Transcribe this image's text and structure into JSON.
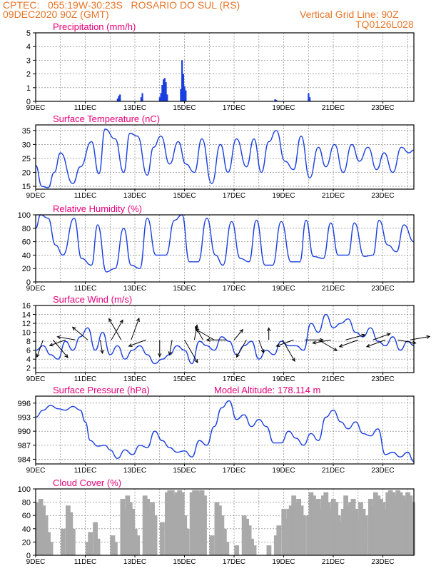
{
  "header": {
    "line1": "CPTEC:   055:19W-30:23S   ROSARIO DO SUL (RS)",
    "line2_left": "09DEC2020 90Z (GMT)",
    "line2_right": "Vertical Grid Line: 90Z",
    "line3_right": "TQ0126L028",
    "color": "#e8762a"
  },
  "colors": {
    "title": "#e8007a",
    "series": "#1a3fe0",
    "cloud": "#a9a9a9",
    "wind": "#000000"
  },
  "x_ticks": [
    "9DEC",
    "11DEC",
    "13DEC",
    "15DEC",
    "17DEC",
    "19DEC",
    "21DEC",
    "23DEC"
  ],
  "chart_data": [
    {
      "type": "bar",
      "title": "Precipitation (mm/h)",
      "xlim": [
        9,
        24.25
      ],
      "ylim": [
        0,
        5
      ],
      "yticks": [
        0,
        1,
        2,
        3,
        4,
        5
      ],
      "series": [
        {
          "x": [
            12.3,
            12.35,
            12.4,
            13.25,
            13.3,
            14.0,
            14.05,
            14.1,
            14.15,
            14.2,
            14.25,
            14.3,
            14.85,
            14.9,
            14.95,
            15.0,
            15.05,
            18.65,
            18.7,
            20.0,
            20.05
          ],
          "values": [
            0.2,
            0.4,
            0.5,
            0.3,
            0.6,
            0.3,
            0.6,
            1.2,
            1.6,
            1.7,
            1.4,
            0.5,
            0.9,
            3.0,
            2.0,
            1.1,
            0.8,
            0.15,
            0.1,
            0.6,
            0.3
          ]
        }
      ]
    },
    {
      "type": "line",
      "title": "Surface Temperature (nC)",
      "xlim": [
        9,
        24.25
      ],
      "ylim": [
        14,
        37
      ],
      "yticks": [
        15,
        20,
        25,
        30,
        35
      ],
      "series": [
        {
          "x": [
            9.0,
            9.25,
            9.5,
            9.75,
            10.0,
            10.5,
            10.8,
            11.25,
            11.55,
            11.8,
            12.2,
            12.55,
            12.8,
            13.1,
            13.5,
            13.75,
            14.05,
            14.4,
            14.75,
            15.05,
            15.4,
            15.7,
            16.1,
            16.45,
            16.75,
            17.1,
            17.5,
            17.8,
            18.1,
            18.4,
            18.7,
            19.05,
            19.4,
            19.7,
            20.05,
            20.4,
            20.7,
            21.05,
            21.4,
            21.75,
            22.05,
            22.4,
            22.75,
            23.05,
            23.4,
            23.75,
            24.05,
            24.25
          ],
          "values": [
            22.5,
            15,
            14.5,
            20,
            27,
            16,
            22,
            31,
            19.5,
            35.5,
            32,
            20,
            34,
            33,
            19,
            29,
            33,
            23,
            31,
            23,
            20,
            32,
            16,
            30,
            20,
            32,
            22,
            32,
            20,
            31,
            35,
            24,
            21,
            33,
            18,
            29,
            22,
            30,
            20,
            30,
            24,
            29,
            21,
            27,
            20,
            29,
            27,
            28
          ]
        }
      ]
    },
    {
      "type": "line",
      "title": "Relative Humidity (%)",
      "xlim": [
        9,
        24.25
      ],
      "ylim": [
        0,
        100
      ],
      "yticks": [
        0,
        20,
        40,
        60,
        80,
        100
      ],
      "series": [
        {
          "x": [
            9.0,
            9.2,
            9.5,
            9.8,
            10.1,
            10.55,
            10.85,
            11.25,
            11.5,
            11.85,
            12.2,
            12.55,
            12.85,
            13.2,
            13.5,
            13.85,
            14.25,
            14.6,
            14.9,
            15.2,
            15.55,
            15.9,
            16.25,
            16.55,
            16.9,
            17.25,
            17.6,
            17.9,
            18.25,
            18.55,
            18.9,
            19.3,
            19.65,
            19.9,
            20.2,
            20.6,
            20.9,
            21.2,
            21.6,
            21.85,
            22.25,
            22.6,
            22.85,
            23.2,
            23.55,
            23.85,
            24.25
          ],
          "values": [
            80,
            100,
            95,
            55,
            40,
            95,
            35,
            25,
            85,
            15,
            20,
            80,
            25,
            20,
            95,
            40,
            40,
            92,
            100,
            30,
            30,
            95,
            40,
            25,
            90,
            35,
            30,
            92,
            25,
            25,
            90,
            30,
            30,
            92,
            38,
            35,
            88,
            40,
            40,
            88,
            38,
            40,
            92,
            55,
            45,
            85,
            60
          ]
        }
      ]
    },
    {
      "type": "line",
      "title": "Surface Wind (m/s)",
      "xlim": [
        9,
        24.25
      ],
      "ylim": [
        1,
        16
      ],
      "yticks": [
        2,
        4,
        6,
        8,
        10,
        12,
        14,
        16
      ],
      "series": [
        {
          "x": [
            9.0,
            9.3,
            9.6,
            9.9,
            10.2,
            10.5,
            10.8,
            11.1,
            11.4,
            11.7,
            12.0,
            12.3,
            12.6,
            12.9,
            13.2,
            13.5,
            13.8,
            14.1,
            14.4,
            14.7,
            15.0,
            15.3,
            15.6,
            15.9,
            16.2,
            16.5,
            16.8,
            17.1,
            17.4,
            17.7,
            18.0,
            18.3,
            18.6,
            18.9,
            19.2,
            19.5,
            19.8,
            20.1,
            20.4,
            20.7,
            21.0,
            21.3,
            21.6,
            21.9,
            22.2,
            22.5,
            22.8,
            23.1,
            23.4,
            23.7,
            24.0,
            24.25
          ],
          "values": [
            6,
            7,
            5,
            4,
            8,
            6,
            9,
            11,
            6,
            10,
            5,
            7,
            4,
            6,
            7,
            5,
            3,
            4,
            5,
            7,
            6,
            3,
            8,
            7,
            6,
            9,
            8,
            5,
            7,
            8,
            4,
            6,
            5,
            8,
            7,
            7,
            6,
            12,
            10,
            14,
            11,
            12,
            13,
            10,
            9,
            11,
            8,
            7,
            9,
            6,
            8,
            7
          ]
        }
      ],
      "barbs": [
        {
          "x": 9.3,
          "speed": 8,
          "dir": 200
        },
        {
          "x": 9.7,
          "speed": 11,
          "dir": 140
        },
        {
          "x": 10.2,
          "speed": 7,
          "dir": 250
        },
        {
          "x": 10.6,
          "speed": 8,
          "dir": 280
        },
        {
          "x": 11.1,
          "speed": 9,
          "dir": 310
        },
        {
          "x": 11.6,
          "speed": 5,
          "dir": 170
        },
        {
          "x": 12.05,
          "speed": 11,
          "dir": 30
        },
        {
          "x": 12.45,
          "speed": 12,
          "dir": 330
        },
        {
          "x": 12.85,
          "speed": 11,
          "dir": 20
        },
        {
          "x": 13.45,
          "speed": 8,
          "dir": 250
        },
        {
          "x": 14.0,
          "speed": 7,
          "dir": 180
        },
        {
          "x": 14.5,
          "speed": 6,
          "dir": 190
        },
        {
          "x": 15.0,
          "speed": 13,
          "dir": 150
        },
        {
          "x": 15.4,
          "speed": 6,
          "dir": 10
        },
        {
          "x": 15.75,
          "speed": 6,
          "dir": 330
        },
        {
          "x": 16.2,
          "speed": 10,
          "dir": 300
        },
        {
          "x": 16.7,
          "speed": 9,
          "dir": 270
        },
        {
          "x": 17.0,
          "speed": 5,
          "dir": 40
        },
        {
          "x": 17.5,
          "speed": 9,
          "dir": 210
        },
        {
          "x": 18.0,
          "speed": 5,
          "dir": 160
        },
        {
          "x": 18.4,
          "speed": 4,
          "dir": 0
        },
        {
          "x": 18.95,
          "speed": 12,
          "dir": 150
        },
        {
          "x": 19.4,
          "speed": 8,
          "dir": 250
        },
        {
          "x": 19.85,
          "speed": 8,
          "dir": 90
        },
        {
          "x": 20.4,
          "speed": 10,
          "dir": 120
        },
        {
          "x": 20.9,
          "speed": 8,
          "dir": 260
        },
        {
          "x": 21.5,
          "speed": 9,
          "dir": 75
        },
        {
          "x": 22.0,
          "speed": 9,
          "dir": 250
        },
        {
          "x": 22.6,
          "speed": 8,
          "dir": 70
        },
        {
          "x": 23.1,
          "speed": 9,
          "dir": 250
        },
        {
          "x": 23.6,
          "speed": 8,
          "dir": 100
        },
        {
          "x": 24.1,
          "speed": 9,
          "dir": 80
        }
      ]
    },
    {
      "type": "line",
      "title": "Surface Pressure (hPa)",
      "subtitle": "Model Altitude: 178.114 m",
      "xlim": [
        9,
        24.25
      ],
      "ylim": [
        983,
        997.5
      ],
      "yticks": [
        984,
        987,
        990,
        993,
        996
      ],
      "series": [
        {
          "x": [
            9.0,
            9.3,
            9.6,
            9.9,
            10.2,
            10.5,
            10.8,
            11.0,
            11.2,
            11.5,
            11.8,
            12.0,
            12.3,
            12.6,
            12.9,
            13.2,
            13.5,
            13.8,
            14.1,
            14.4,
            14.7,
            15.0,
            15.3,
            15.6,
            15.9,
            16.2,
            16.5,
            16.8,
            17.1,
            17.4,
            17.7,
            18.0,
            18.3,
            18.6,
            18.9,
            19.2,
            19.5,
            19.8,
            20.1,
            20.4,
            20.7,
            21.0,
            21.3,
            21.6,
            21.9,
            22.2,
            22.5,
            22.8,
            23.1,
            23.4,
            23.7,
            24.0,
            24.25
          ],
          "values": [
            993,
            994.5,
            995.5,
            994.8,
            994.5,
            995.3,
            994.5,
            992,
            988,
            986.8,
            987,
            986,
            984.2,
            986,
            985,
            987,
            986.5,
            990,
            988,
            986.5,
            985.5,
            985.8,
            984.5,
            988,
            987,
            991,
            995,
            996.5,
            992.5,
            993.5,
            991,
            992.5,
            991,
            987.5,
            987.5,
            990,
            988.5,
            987,
            989.5,
            988,
            993,
            994.5,
            992,
            990.5,
            992,
            989.5,
            989,
            990.5,
            985,
            985.5,
            984.5,
            985.5,
            983.5
          ]
        }
      ]
    },
    {
      "type": "bar",
      "title": "Cloud Cover (%)",
      "xlim": [
        9,
        24.25
      ],
      "ylim": [
        0,
        100
      ],
      "yticks": [
        0,
        20,
        40,
        60,
        80,
        100
      ],
      "series": [
        {
          "x": [
            9.1,
            9.2,
            9.3,
            9.4,
            9.5,
            9.6,
            10.1,
            10.3,
            10.4,
            10.5,
            11.1,
            11.2,
            11.4,
            11.5,
            12.1,
            12.2,
            12.5,
            12.6,
            12.7,
            12.8,
            12.9,
            13.0,
            13.1,
            13.4,
            13.5,
            13.6,
            13.7,
            13.8,
            14.1,
            14.3,
            14.4,
            14.5,
            14.6,
            14.7,
            14.8,
            14.9,
            15.0,
            15.1,
            15.3,
            15.4,
            15.5,
            15.6,
            15.7,
            15.8,
            16.1,
            16.3,
            16.4,
            16.5,
            16.6,
            16.7,
            17.1,
            17.4,
            17.5,
            17.6,
            17.7,
            17.8,
            18.4,
            18.7,
            18.8,
            19.0,
            19.1,
            19.2,
            19.3,
            19.4,
            19.5,
            19.6,
            19.7,
            19.8,
            20.0,
            20.1,
            20.2,
            20.3,
            20.4,
            20.5,
            20.6,
            20.7,
            20.8,
            20.9,
            21.0,
            21.1,
            21.2,
            21.3,
            21.4,
            21.5,
            21.6,
            21.7,
            21.8,
            21.9,
            22.0,
            22.1,
            22.2,
            22.3,
            22.5,
            22.6,
            22.7,
            22.8,
            22.9,
            23.0,
            23.1,
            23.2,
            23.3,
            23.4,
            23.5,
            23.6,
            23.7,
            23.8,
            23.9,
            24.0,
            24.1,
            24.2
          ],
          "values": [
            80,
            85,
            75,
            60,
            35,
            20,
            40,
            75,
            65,
            40,
            20,
            35,
            50,
            25,
            30,
            20,
            85,
            70,
            90,
            80,
            70,
            40,
            30,
            90,
            85,
            70,
            80,
            60,
            50,
            95,
            98,
            98,
            90,
            95,
            98,
            95,
            60,
            40,
            95,
            98,
            98,
            95,
            98,
            90,
            30,
            80,
            75,
            60,
            40,
            20,
            15,
            60,
            55,
            45,
            25,
            15,
            15,
            30,
            45,
            70,
            55,
            70,
            75,
            90,
            80,
            85,
            75,
            60,
            60,
            95,
            90,
            80,
            85,
            70,
            90,
            95,
            80,
            70,
            85,
            80,
            60,
            50,
            70,
            90,
            75,
            80,
            85,
            70,
            55,
            80,
            70,
            60,
            85,
            75,
            95,
            90,
            85,
            80,
            70,
            95,
            98,
            95,
            90,
            98,
            95,
            90,
            85,
            95,
            90,
            80
          ]
        }
      ]
    }
  ]
}
